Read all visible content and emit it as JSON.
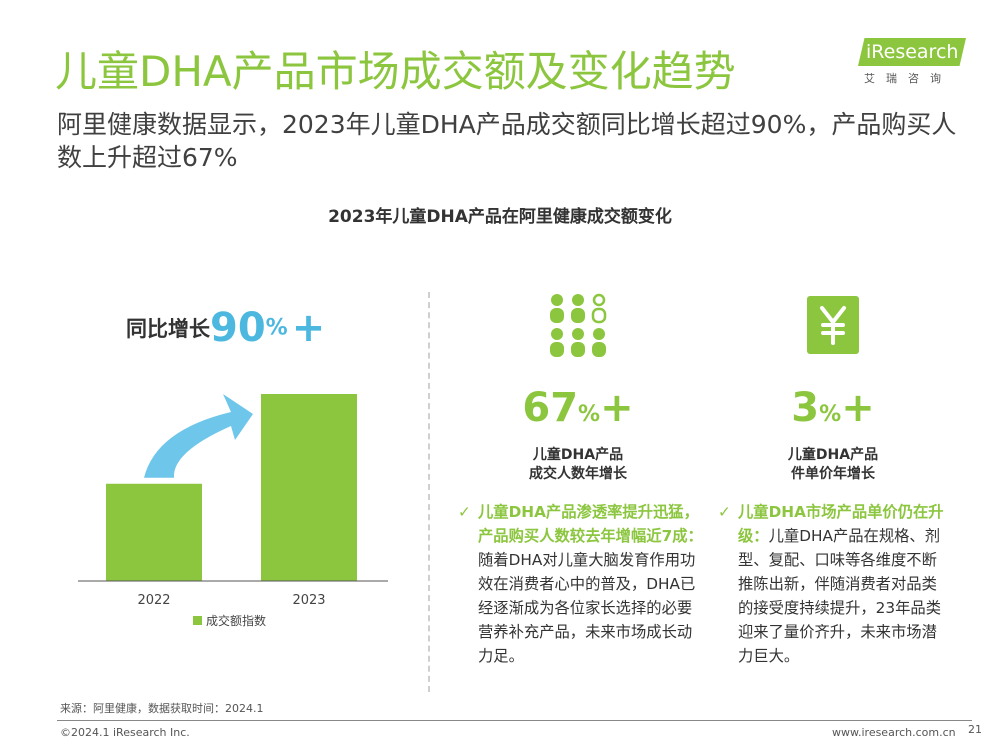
{
  "header": {
    "title": "儿童DHA产品市场成交额及变化趋势",
    "subtitle": "阿里健康数据显示，2023年儿童DHA产品成交额同比增长超过90%，产品购买人数上升超过67%",
    "logo_text": "iResearch",
    "logo_cn": "艾瑞咨询"
  },
  "chart_data": {
    "type": "bar",
    "title": "2023年儿童DHA产品在阿里健康成交额变化",
    "categories": [
      "2022",
      "2023"
    ],
    "series": [
      {
        "name": "成交额指数",
        "values": [
          52,
          100
        ]
      }
    ],
    "ylim": [
      0,
      100
    ],
    "legend": "bottom",
    "grid": false,
    "annotation": {
      "label": "同比增长",
      "value": "90",
      "unit": "%",
      "suffix": "+"
    },
    "colors": {
      "bar": "#8cc63f",
      "arrow": "#6ec6ea",
      "accent": "#4cb8e0"
    }
  },
  "stats": [
    {
      "icon": "people-icon",
      "value": "67",
      "unit": "%",
      "suffix": "+",
      "label_line1": "儿童DHA产品",
      "label_line2": "成交人数年增长"
    },
    {
      "icon": "yuan-icon",
      "value": "3",
      "unit": "%",
      "suffix": "+",
      "label_line1": "儿童DHA产品",
      "label_line2": "件单价年增长"
    }
  ],
  "bullets": [
    {
      "check": "✓",
      "highlight": "儿童DHA产品渗透率提升迅猛，产品购买人数较去年增幅近7成：",
      "text": "随着DHA对儿童大脑发育作用功效在消费者心中的普及，DHA已经逐渐成为各位家长选择的必要营养补充产品，未来市场成长动力足。"
    },
    {
      "check": "✓",
      "highlight": "儿童DHA市场产品单价仍在升级：",
      "text": "儿童DHA产品在规格、剂型、复配、口味等各维度不断推陈出新，伴随消费者对品类的接受度持续提升，23年品类迎来了量价齐升，未来市场潜力巨大。"
    }
  ],
  "footer": {
    "source": "来源：阿里健康，数据获取时间：2024.1",
    "copyright": "©2024.1 iResearch Inc.",
    "url": "www.iresearch.com.cn",
    "page": "21"
  },
  "colors": {
    "accent_green": "#8cc63f",
    "accent_blue": "#4cb8e0"
  }
}
